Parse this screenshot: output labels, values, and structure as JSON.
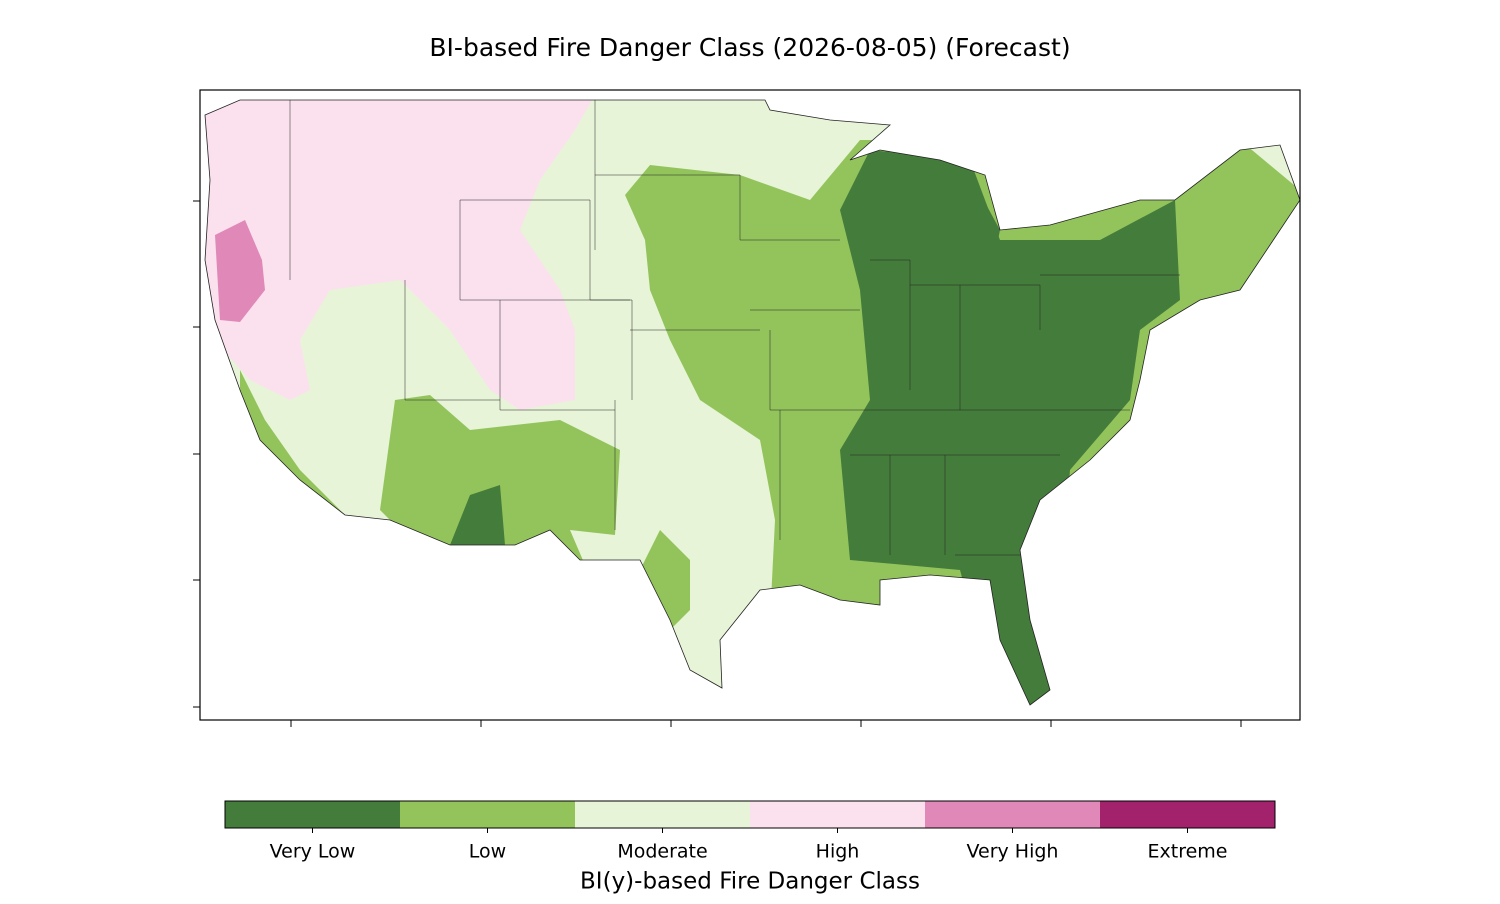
{
  "title": "BI-based Fire Danger Class (2026-08-05) (Forecast)",
  "legend": {
    "title": "BI(y)-based Fire Danger Class",
    "classes": [
      {
        "label": "Very Low",
        "color": "#447c3b"
      },
      {
        "label": "Low",
        "color": "#93c45c"
      },
      {
        "label": "Moderate",
        "color": "#e7f4d8"
      },
      {
        "label": "High",
        "color": "#fbe1ee"
      },
      {
        "label": "Very High",
        "color": "#e088b8"
      },
      {
        "label": "Extreme",
        "color": "#a3226c"
      }
    ]
  }
}
